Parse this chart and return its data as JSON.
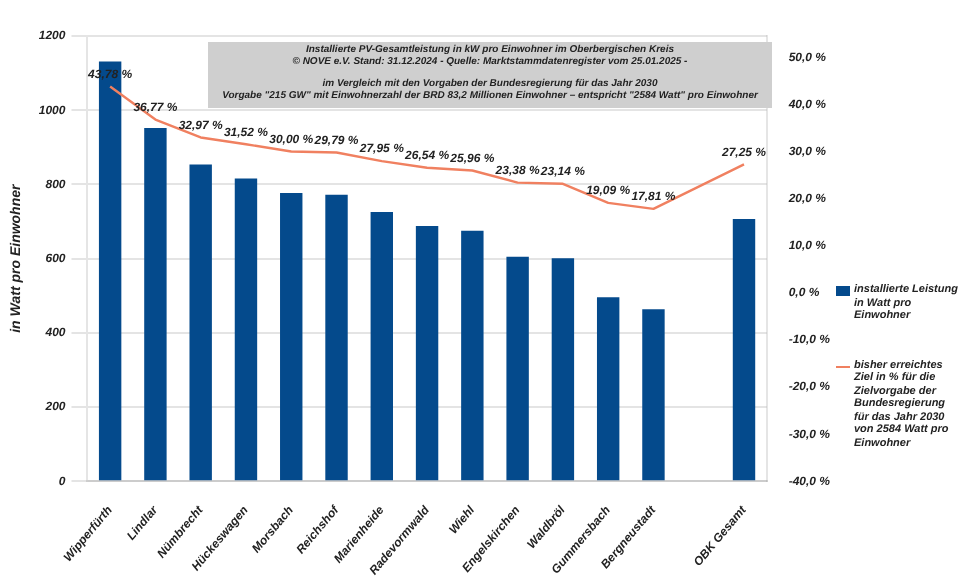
{
  "chart_data": {
    "type": "bar",
    "title": "Installierte PV-Gesamtleistung in kW pro Einwohner im Oberbergischen Kreis",
    "subtitle": "© NOVE e.V. Stand: 31.12.2024 - Quelle: Marktstammdatenregister vom 25.01.2025 -",
    "annotations": [
      "im Vergleich mit den Vorgaben der Bundesregierung für das Jahr 2030",
      "Vorgabe \"215 GW\" mit Einwohnerzahl der BRD 83,2 Millionen Einwohner – entspricht \"2584 Watt\" pro Einwohner"
    ],
    "ylabel": "in Watt pro Einwohner",
    "categories": [
      "Wipperfürth",
      "Lindlar",
      "Nümbrecht",
      "Hückeswagen",
      "Morsbach",
      "Reichshof",
      "Marienheide",
      "Radevormwald",
      "Wiehl",
      "Engelskirchen",
      "Waldbröl",
      "Gummersbach",
      "Bergneustadt",
      null,
      "OBK Gesamt"
    ],
    "series": [
      {
        "name": "installierte Leistung in Watt pro Einwohner",
        "color": "#044a8c",
        "values": [
          1131,
          952,
          854,
          816,
          777,
          772,
          726,
          688,
          675,
          605,
          601,
          496,
          464,
          null,
          707
        ]
      },
      {
        "name": "bisher erreichtes Ziel in % für die Zielvorgabe der Bundesregierung für das Jahr 2030 von 2584 Watt pro Einwohner",
        "type": "line",
        "axis": "y2",
        "color": "#f08060",
        "marker": "none",
        "values": [
          43.78,
          36.77,
          32.97,
          31.52,
          30.0,
          29.79,
          27.95,
          26.54,
          25.96,
          23.38,
          23.14,
          19.09,
          17.81,
          null,
          27.25
        ],
        "value_labels": [
          "43,78 %",
          "36,77 %",
          "32,97 %",
          "31,52 %",
          "30,00 %",
          "29,79 %",
          "27,95 %",
          "26,54 %",
          "25,96 %",
          "23,38 %",
          "23,14 %",
          "19,09 %",
          "17,81 %",
          null,
          "27,25 %"
        ]
      }
    ],
    "ylim": [
      0,
      1200
    ],
    "yticks": [
      0,
      200,
      400,
      600,
      800,
      1000,
      1200
    ],
    "y2lim": [
      -40,
      54.5
    ],
    "y2ticks": [
      {
        "value": -40,
        "label": "-40,0 %"
      },
      {
        "value": -30,
        "label": "-30,0 %"
      },
      {
        "value": -20,
        "label": "-20,0 %"
      },
      {
        "value": -10,
        "label": "-10,0 %"
      },
      {
        "value": 0,
        "label": "0,0 %"
      },
      {
        "value": 10,
        "label": "10,0 %"
      },
      {
        "value": 20,
        "label": "20,0 %"
      },
      {
        "value": 30,
        "label": "30,0 %"
      },
      {
        "value": 40,
        "label": "40,0 %"
      },
      {
        "value": 50,
        "label": "50,0 %"
      }
    ],
    "grid": "y",
    "legend": "right"
  }
}
